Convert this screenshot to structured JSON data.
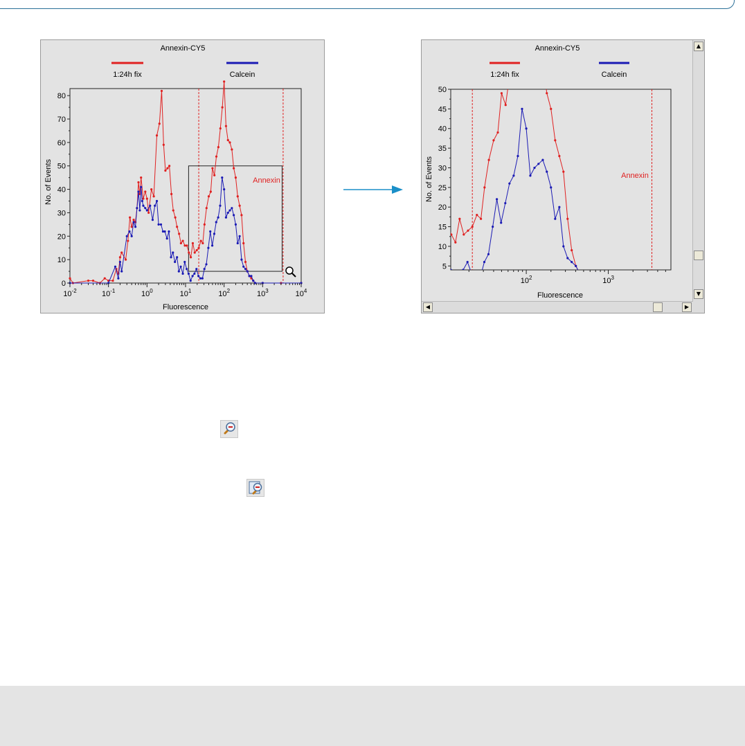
{
  "colors": {
    "series1": "#e02020",
    "series2": "#1a1ab4",
    "gate": "#e02020",
    "accent": "#1a8fc8",
    "panel_bg": "#e3e3e3"
  },
  "icons": {
    "arrow": "right-arrow-icon",
    "zoom_out": "zoom-out-icon",
    "zoom_reset": "zoom-reset-icon",
    "magnifier": "magnifier-cursor-icon"
  },
  "chart_data": [
    {
      "type": "line",
      "title": "Annexin-CY5",
      "xlabel": "Fluorescence",
      "ylabel": "No. of Events",
      "xscale": "log",
      "xlim": [
        0.01,
        10000
      ],
      "ylim": [
        0,
        83
      ],
      "xticks": [
        {
          "v": 0.01,
          "b": "10",
          "e": "-2"
        },
        {
          "v": 0.1,
          "b": "10",
          "e": "-1"
        },
        {
          "v": 1,
          "b": "10",
          "e": "0"
        },
        {
          "v": 10,
          "b": "10",
          "e": "1"
        },
        {
          "v": 100,
          "b": "10",
          "e": "2"
        },
        {
          "v": 1000,
          "b": "10",
          "e": "3"
        },
        {
          "v": 10000,
          "b": "10",
          "e": "4"
        }
      ],
      "yticks": [
        "0",
        "10",
        "20",
        "30",
        "40",
        "50",
        "60",
        "70",
        "80"
      ],
      "legend": "top",
      "series": [
        {
          "name": "1:24h fix",
          "color": "#e02020",
          "points": [
            [
              0.01,
              2
            ],
            [
              0.012,
              0
            ],
            [
              0.03,
              1
            ],
            [
              0.04,
              1
            ],
            [
              0.06,
              0
            ],
            [
              0.08,
              2
            ],
            [
              0.1,
              1
            ],
            [
              0.13,
              1
            ],
            [
              0.16,
              6
            ],
            [
              0.18,
              4
            ],
            [
              0.2,
              11
            ],
            [
              0.22,
              13
            ],
            [
              0.28,
              10
            ],
            [
              0.32,
              18
            ],
            [
              0.36,
              28
            ],
            [
              0.4,
              24
            ],
            [
              0.45,
              27
            ],
            [
              0.5,
              26
            ],
            [
              0.55,
              32
            ],
            [
              0.6,
              43
            ],
            [
              0.65,
              38
            ],
            [
              0.7,
              45
            ],
            [
              0.8,
              36
            ],
            [
              0.9,
              39
            ],
            [
              1.0,
              36
            ],
            [
              1.1,
              30
            ],
            [
              1.3,
              40
            ],
            [
              1.5,
              37
            ],
            [
              1.8,
              63
            ],
            [
              2.1,
              68
            ],
            [
              2.4,
              82
            ],
            [
              2.7,
              59
            ],
            [
              3.0,
              48
            ],
            [
              3.4,
              49
            ],
            [
              3.8,
              50
            ],
            [
              4.3,
              38
            ],
            [
              4.8,
              31
            ],
            [
              5.4,
              28
            ],
            [
              6.0,
              24
            ],
            [
              6.8,
              21
            ],
            [
              7.6,
              17
            ],
            [
              8.5,
              18
            ],
            [
              9.6,
              16
            ],
            [
              10.8,
              16
            ],
            [
              12.2,
              13
            ],
            [
              13.7,
              11
            ],
            [
              15.4,
              17
            ],
            [
              17.3,
              13
            ],
            [
              19.5,
              14
            ],
            [
              22,
              15
            ],
            [
              25,
              18
            ],
            [
              28,
              17
            ],
            [
              31,
              25
            ],
            [
              35,
              32
            ],
            [
              40,
              37
            ],
            [
              45,
              39
            ],
            [
              50,
              49
            ],
            [
              56,
              46
            ],
            [
              63,
              54
            ],
            [
              71,
              58
            ],
            [
              80,
              66
            ],
            [
              90,
              75
            ],
            [
              100,
              86
            ],
            [
              112,
              67
            ],
            [
              126,
              61
            ],
            [
              141,
              60
            ],
            [
              159,
              57
            ],
            [
              178,
              49
            ],
            [
              200,
              45
            ],
            [
              225,
              37
            ],
            [
              253,
              33
            ],
            [
              284,
              29
            ],
            [
              319,
              17
            ],
            [
              358,
              9
            ],
            [
              402,
              5
            ],
            [
              452,
              3
            ],
            [
              508,
              2
            ],
            [
              570,
              1
            ],
            [
              640,
              0
            ],
            [
              1000,
              0
            ],
            [
              3000,
              0
            ],
            [
              10000,
              0
            ]
          ]
        },
        {
          "name": "Calcein",
          "color": "#1a1ab4",
          "points": [
            [
              0.01,
              0
            ],
            [
              0.1,
              0
            ],
            [
              0.15,
              7
            ],
            [
              0.18,
              2
            ],
            [
              0.2,
              9
            ],
            [
              0.22,
              5
            ],
            [
              0.3,
              20
            ],
            [
              0.35,
              22
            ],
            [
              0.4,
              20
            ],
            [
              0.45,
              26
            ],
            [
              0.5,
              24
            ],
            [
              0.55,
              32
            ],
            [
              0.6,
              39
            ],
            [
              0.65,
              31
            ],
            [
              0.7,
              41
            ],
            [
              0.75,
              35
            ],
            [
              0.8,
              33
            ],
            [
              0.9,
              32
            ],
            [
              1.0,
              31
            ],
            [
              1.2,
              33
            ],
            [
              1.4,
              27
            ],
            [
              1.6,
              33
            ],
            [
              1.8,
              35
            ],
            [
              2.0,
              25
            ],
            [
              2.3,
              25
            ],
            [
              2.6,
              22
            ],
            [
              2.9,
              22
            ],
            [
              3.3,
              19
            ],
            [
              3.7,
              22
            ],
            [
              4.2,
              11
            ],
            [
              4.7,
              13
            ],
            [
              5.3,
              9
            ],
            [
              6.0,
              11
            ],
            [
              6.7,
              5
            ],
            [
              7.5,
              7
            ],
            [
              8.5,
              4
            ],
            [
              9.5,
              9
            ],
            [
              10.7,
              6
            ],
            [
              12,
              4
            ],
            [
              13.5,
              1
            ],
            [
              15.2,
              3
            ],
            [
              17,
              4
            ],
            [
              19.2,
              6
            ],
            [
              21.6,
              3
            ],
            [
              24.3,
              2
            ],
            [
              27.4,
              2
            ],
            [
              30.8,
              6
            ],
            [
              34.6,
              8
            ],
            [
              39,
              15
            ],
            [
              43.8,
              22
            ],
            [
              49.3,
              16
            ],
            [
              55.5,
              21
            ],
            [
              62.4,
              26
            ],
            [
              70.2,
              28
            ],
            [
              79,
              33
            ],
            [
              88.8,
              45
            ],
            [
              100,
              40
            ],
            [
              112,
              28
            ],
            [
              126,
              30
            ],
            [
              141,
              31
            ],
            [
              159,
              32
            ],
            [
              178,
              29
            ],
            [
              200,
              25
            ],
            [
              225,
              17
            ],
            [
              253,
              20
            ],
            [
              284,
              10
            ],
            [
              319,
              7
            ],
            [
              358,
              6
            ],
            [
              402,
              5
            ],
            [
              452,
              3
            ],
            [
              508,
              3
            ],
            [
              570,
              1
            ],
            [
              640,
              0
            ],
            [
              1000,
              0
            ],
            [
              10000,
              0
            ]
          ]
        }
      ],
      "gates": [
        {
          "label": "Annexin",
          "x": [
            22,
            3400
          ]
        }
      ],
      "zoom_box": {
        "x": [
          12,
          3200
        ],
        "y": [
          5,
          50
        ]
      }
    },
    {
      "type": "line",
      "title": "Annexin-CY5",
      "xlabel": "Fluorescence",
      "ylabel": "No. of Events",
      "xscale": "log",
      "xlim": [
        12,
        5800
      ],
      "ylim": [
        4,
        50
      ],
      "xticks": [
        {
          "v": 100,
          "b": "10",
          "e": "2"
        },
        {
          "v": 1000,
          "b": "10",
          "e": "3"
        }
      ],
      "yticks": [
        "5",
        "10",
        "15",
        "20",
        "25",
        "30",
        "35",
        "40",
        "45",
        "50"
      ],
      "legend": "top",
      "gates": [
        {
          "label": "Annexin",
          "x": [
            22,
            3400
          ]
        }
      ]
    }
  ]
}
